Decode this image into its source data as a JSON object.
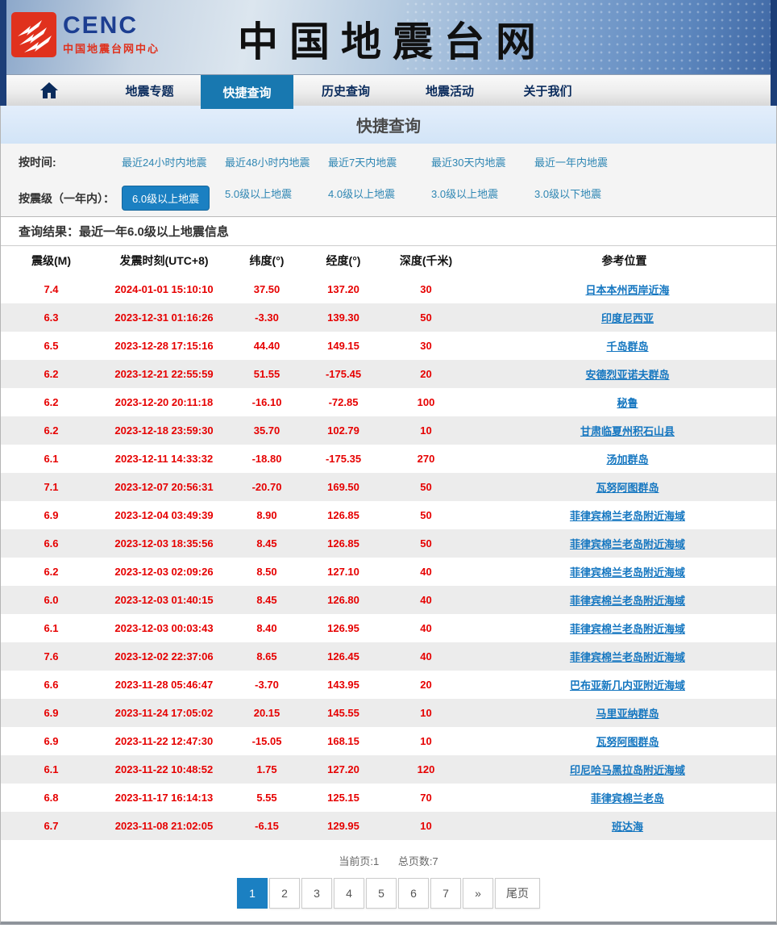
{
  "header": {
    "logo": {
      "brand": "CENC",
      "subtitle": "中国地震台网中心"
    },
    "site_title": "中国地震台网"
  },
  "nav": {
    "home_icon": "home",
    "items": [
      {
        "label": "地震专题",
        "active": false
      },
      {
        "label": "快捷查询",
        "active": true
      },
      {
        "label": "历史查询",
        "active": false
      },
      {
        "label": "地震活动",
        "active": false
      },
      {
        "label": "关于我们",
        "active": false
      }
    ]
  },
  "page_title": "快捷查询",
  "filters": {
    "time": {
      "label": "按时间:",
      "options": [
        {
          "label": "最近24小时内地震",
          "active": false
        },
        {
          "label": "最近48小时内地震",
          "active": false
        },
        {
          "label": "最近7天内地震",
          "active": false
        },
        {
          "label": "最近30天内地震",
          "active": false
        },
        {
          "label": "最近一年内地震",
          "active": false
        }
      ]
    },
    "magnitude": {
      "label": "按震级（一年内）：",
      "options": [
        {
          "label": "6.0级以上地震",
          "active": true
        },
        {
          "label": "5.0级以上地震",
          "active": false
        },
        {
          "label": "4.0级以上地震",
          "active": false
        },
        {
          "label": "3.0级以上地震",
          "active": false
        },
        {
          "label": "3.0级以下地震",
          "active": false
        }
      ]
    }
  },
  "results": {
    "title": "查询结果：最近一年6.0级以上地震信息",
    "columns": [
      "震级(M)",
      "发震时刻(UTC+8)",
      "纬度(°)",
      "经度(°)",
      "深度(千米)",
      "参考位置"
    ],
    "rows": [
      [
        "7.4",
        "2024-01-01 15:10:10",
        "37.50",
        "137.20",
        "30",
        "日本本州西岸近海"
      ],
      [
        "6.3",
        "2023-12-31 01:16:26",
        "-3.30",
        "139.30",
        "50",
        "印度尼西亚"
      ],
      [
        "6.5",
        "2023-12-28 17:15:16",
        "44.40",
        "149.15",
        "30",
        "千岛群岛"
      ],
      [
        "6.2",
        "2023-12-21 22:55:59",
        "51.55",
        "-175.45",
        "20",
        "安德烈亚诺夫群岛"
      ],
      [
        "6.2",
        "2023-12-20 20:11:18",
        "-16.10",
        "-72.85",
        "100",
        "秘鲁"
      ],
      [
        "6.2",
        "2023-12-18 23:59:30",
        "35.70",
        "102.79",
        "10",
        "甘肃临夏州积石山县"
      ],
      [
        "6.1",
        "2023-12-11 14:33:32",
        "-18.80",
        "-175.35",
        "270",
        "汤加群岛"
      ],
      [
        "7.1",
        "2023-12-07 20:56:31",
        "-20.70",
        "169.50",
        "50",
        "瓦努阿图群岛"
      ],
      [
        "6.9",
        "2023-12-04 03:49:39",
        "8.90",
        "126.85",
        "50",
        "菲律宾棉兰老岛附近海域"
      ],
      [
        "6.6",
        "2023-12-03 18:35:56",
        "8.45",
        "126.85",
        "50",
        "菲律宾棉兰老岛附近海域"
      ],
      [
        "6.2",
        "2023-12-03 02:09:26",
        "8.50",
        "127.10",
        "40",
        "菲律宾棉兰老岛附近海域"
      ],
      [
        "6.0",
        "2023-12-03 01:40:15",
        "8.45",
        "126.80",
        "40",
        "菲律宾棉兰老岛附近海域"
      ],
      [
        "6.1",
        "2023-12-03 00:03:43",
        "8.40",
        "126.95",
        "40",
        "菲律宾棉兰老岛附近海域"
      ],
      [
        "7.6",
        "2023-12-02 22:37:06",
        "8.65",
        "126.45",
        "40",
        "菲律宾棉兰老岛附近海域"
      ],
      [
        "6.6",
        "2023-11-28 05:46:47",
        "-3.70",
        "143.95",
        "20",
        "巴布亚新几内亚附近海域"
      ],
      [
        "6.9",
        "2023-11-24 17:05:02",
        "20.15",
        "145.55",
        "10",
        "马里亚纳群岛"
      ],
      [
        "6.9",
        "2023-11-22 12:47:30",
        "-15.05",
        "168.15",
        "10",
        "瓦努阿图群岛"
      ],
      [
        "6.1",
        "2023-11-22 10:48:52",
        "1.75",
        "127.20",
        "120",
        "印尼哈马黑拉岛附近海域"
      ],
      [
        "6.8",
        "2023-11-17 16:14:13",
        "5.55",
        "125.15",
        "70",
        "菲律宾棉兰老岛"
      ],
      [
        "6.7",
        "2023-11-08 21:02:05",
        "-6.15",
        "129.95",
        "10",
        "班达海"
      ]
    ]
  },
  "pagination": {
    "current_label": "当前页:1",
    "total_label": "总页数:7",
    "pages": [
      "1",
      "2",
      "3",
      "4",
      "5",
      "6",
      "7"
    ],
    "active_page": "1",
    "next_label": "»",
    "last_label": "尾页"
  },
  "colors": {
    "accent_blue": "#1b80c2",
    "nav_active_blue": "#1878b0",
    "data_red": "#e60000",
    "link_blue": "#1476c0",
    "filter_link_teal": "#2e86b3",
    "nav_text_navy": "#0a2b5c",
    "logo_red": "#e0311d",
    "logo_blue": "#1c3e91"
  }
}
